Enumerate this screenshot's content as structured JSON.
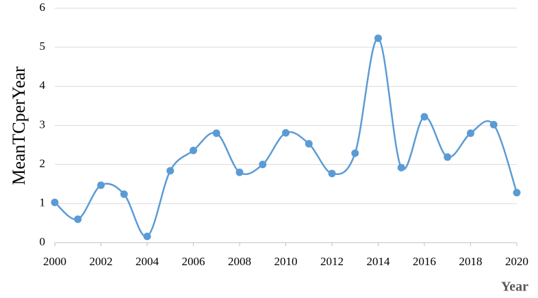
{
  "chart_data": {
    "type": "line",
    "x_label": "Year",
    "y_label": "MeanTCperYear",
    "x": [
      2000,
      2001,
      2002,
      2003,
      2004,
      2005,
      2006,
      2007,
      2008,
      2009,
      2010,
      2011,
      2012,
      2013,
      2014,
      2015,
      2016,
      2017,
      2018,
      2019,
      2020
    ],
    "series": [
      {
        "name": "MeanTCperYear",
        "color": "#5b9bd5",
        "values": [
          1.03,
          0.6,
          1.47,
          1.24,
          0.16,
          1.84,
          2.36,
          2.8,
          1.8,
          2.0,
          2.81,
          2.53,
          1.77,
          2.29,
          5.23,
          1.92,
          3.22,
          2.19,
          2.8,
          3.02,
          1.28
        ]
      }
    ],
    "xlim": [
      2000,
      2020
    ],
    "xticks": [
      2000,
      2002,
      2004,
      2006,
      2008,
      2010,
      2012,
      2014,
      2016,
      2018,
      2020
    ],
    "ylim": [
      0,
      6
    ],
    "yticks": [
      0,
      1,
      2,
      3,
      4,
      5,
      6
    ],
    "grid": true,
    "smooth": true
  }
}
